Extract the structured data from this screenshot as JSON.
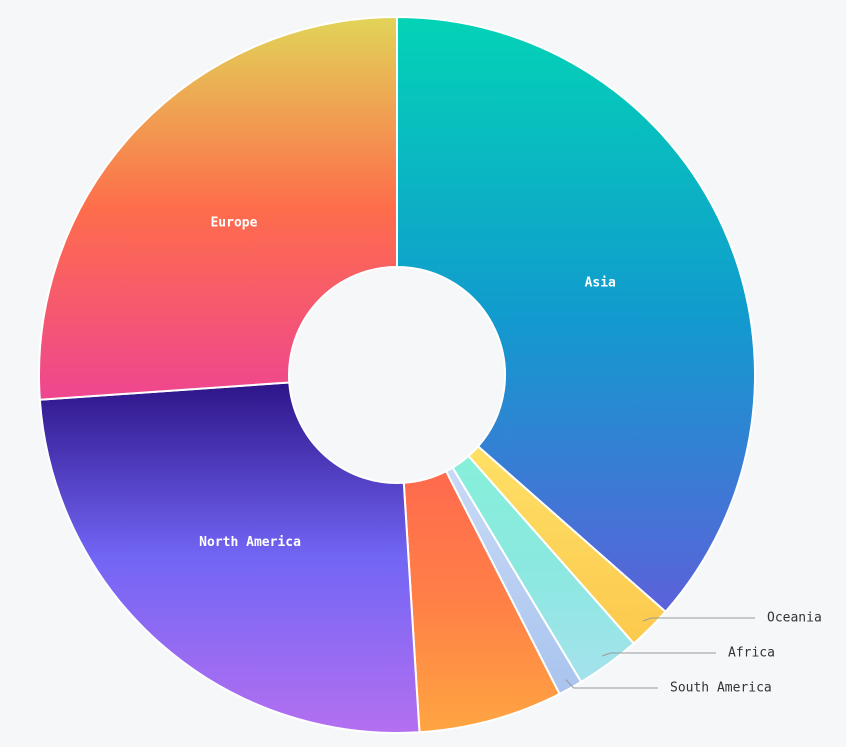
{
  "chart_data": {
    "type": "pie",
    "variant": "donut",
    "title": "",
    "slices": [
      {
        "label": "Asia",
        "value": 36.5,
        "gradient": [
          "#03d3b6",
          "#119bce",
          "#5c61da"
        ]
      },
      {
        "label": "Oceania",
        "value": 2.0,
        "gradient": [
          "#ffe066",
          "#fdd45a",
          "#fcc94d"
        ]
      },
      {
        "label": "Africa",
        "value": 2.9,
        "gradient": [
          "#86f0da",
          "#8be8e0",
          "#a5e2ec"
        ]
      },
      {
        "label": "South America",
        "value": 1.1,
        "gradient": [
          "#c8d9f5",
          "#b9cff2",
          "#a9c4ef"
        ]
      },
      {
        "label": "",
        "value": 6.5,
        "gradient": [
          "#ff6a4d",
          "#ff8047",
          "#ffa541"
        ]
      },
      {
        "label": "North America",
        "value": 24.9,
        "gradient": [
          "#2d1488",
          "#7266f5",
          "#b46ff0"
        ]
      },
      {
        "label": "Europe",
        "value": 26.1,
        "gradient": [
          "#e1d458",
          "#fe6d4b",
          "#ee4690"
        ]
      }
    ],
    "legend": "none",
    "label_placement": {
      "Asia": "inside",
      "Europe": "inside",
      "North America": "inside",
      "Oceania": "outside",
      "Africa": "outside",
      "South America": "outside"
    }
  }
}
